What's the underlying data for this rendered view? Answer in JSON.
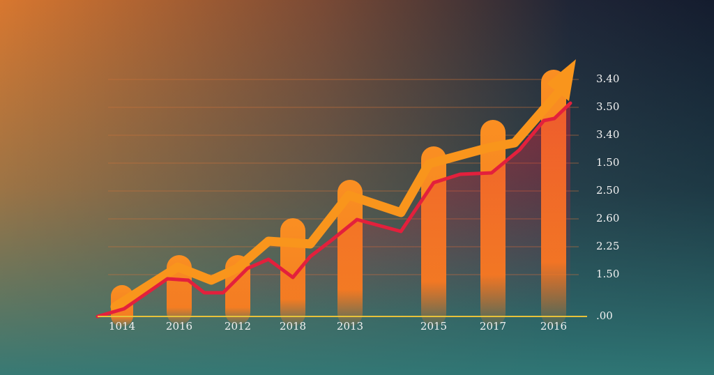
{
  "y_axis_labels": [
    "3.40",
    "3.50",
    "3.40",
    "1.50",
    "2.50",
    "2.60",
    "2.25",
    "1.50",
    ".00"
  ],
  "x_axis_labels": [
    "1014",
    "2016",
    "2012",
    "2018",
    "2013",
    "2015",
    "2017",
    "2016"
  ]
}
